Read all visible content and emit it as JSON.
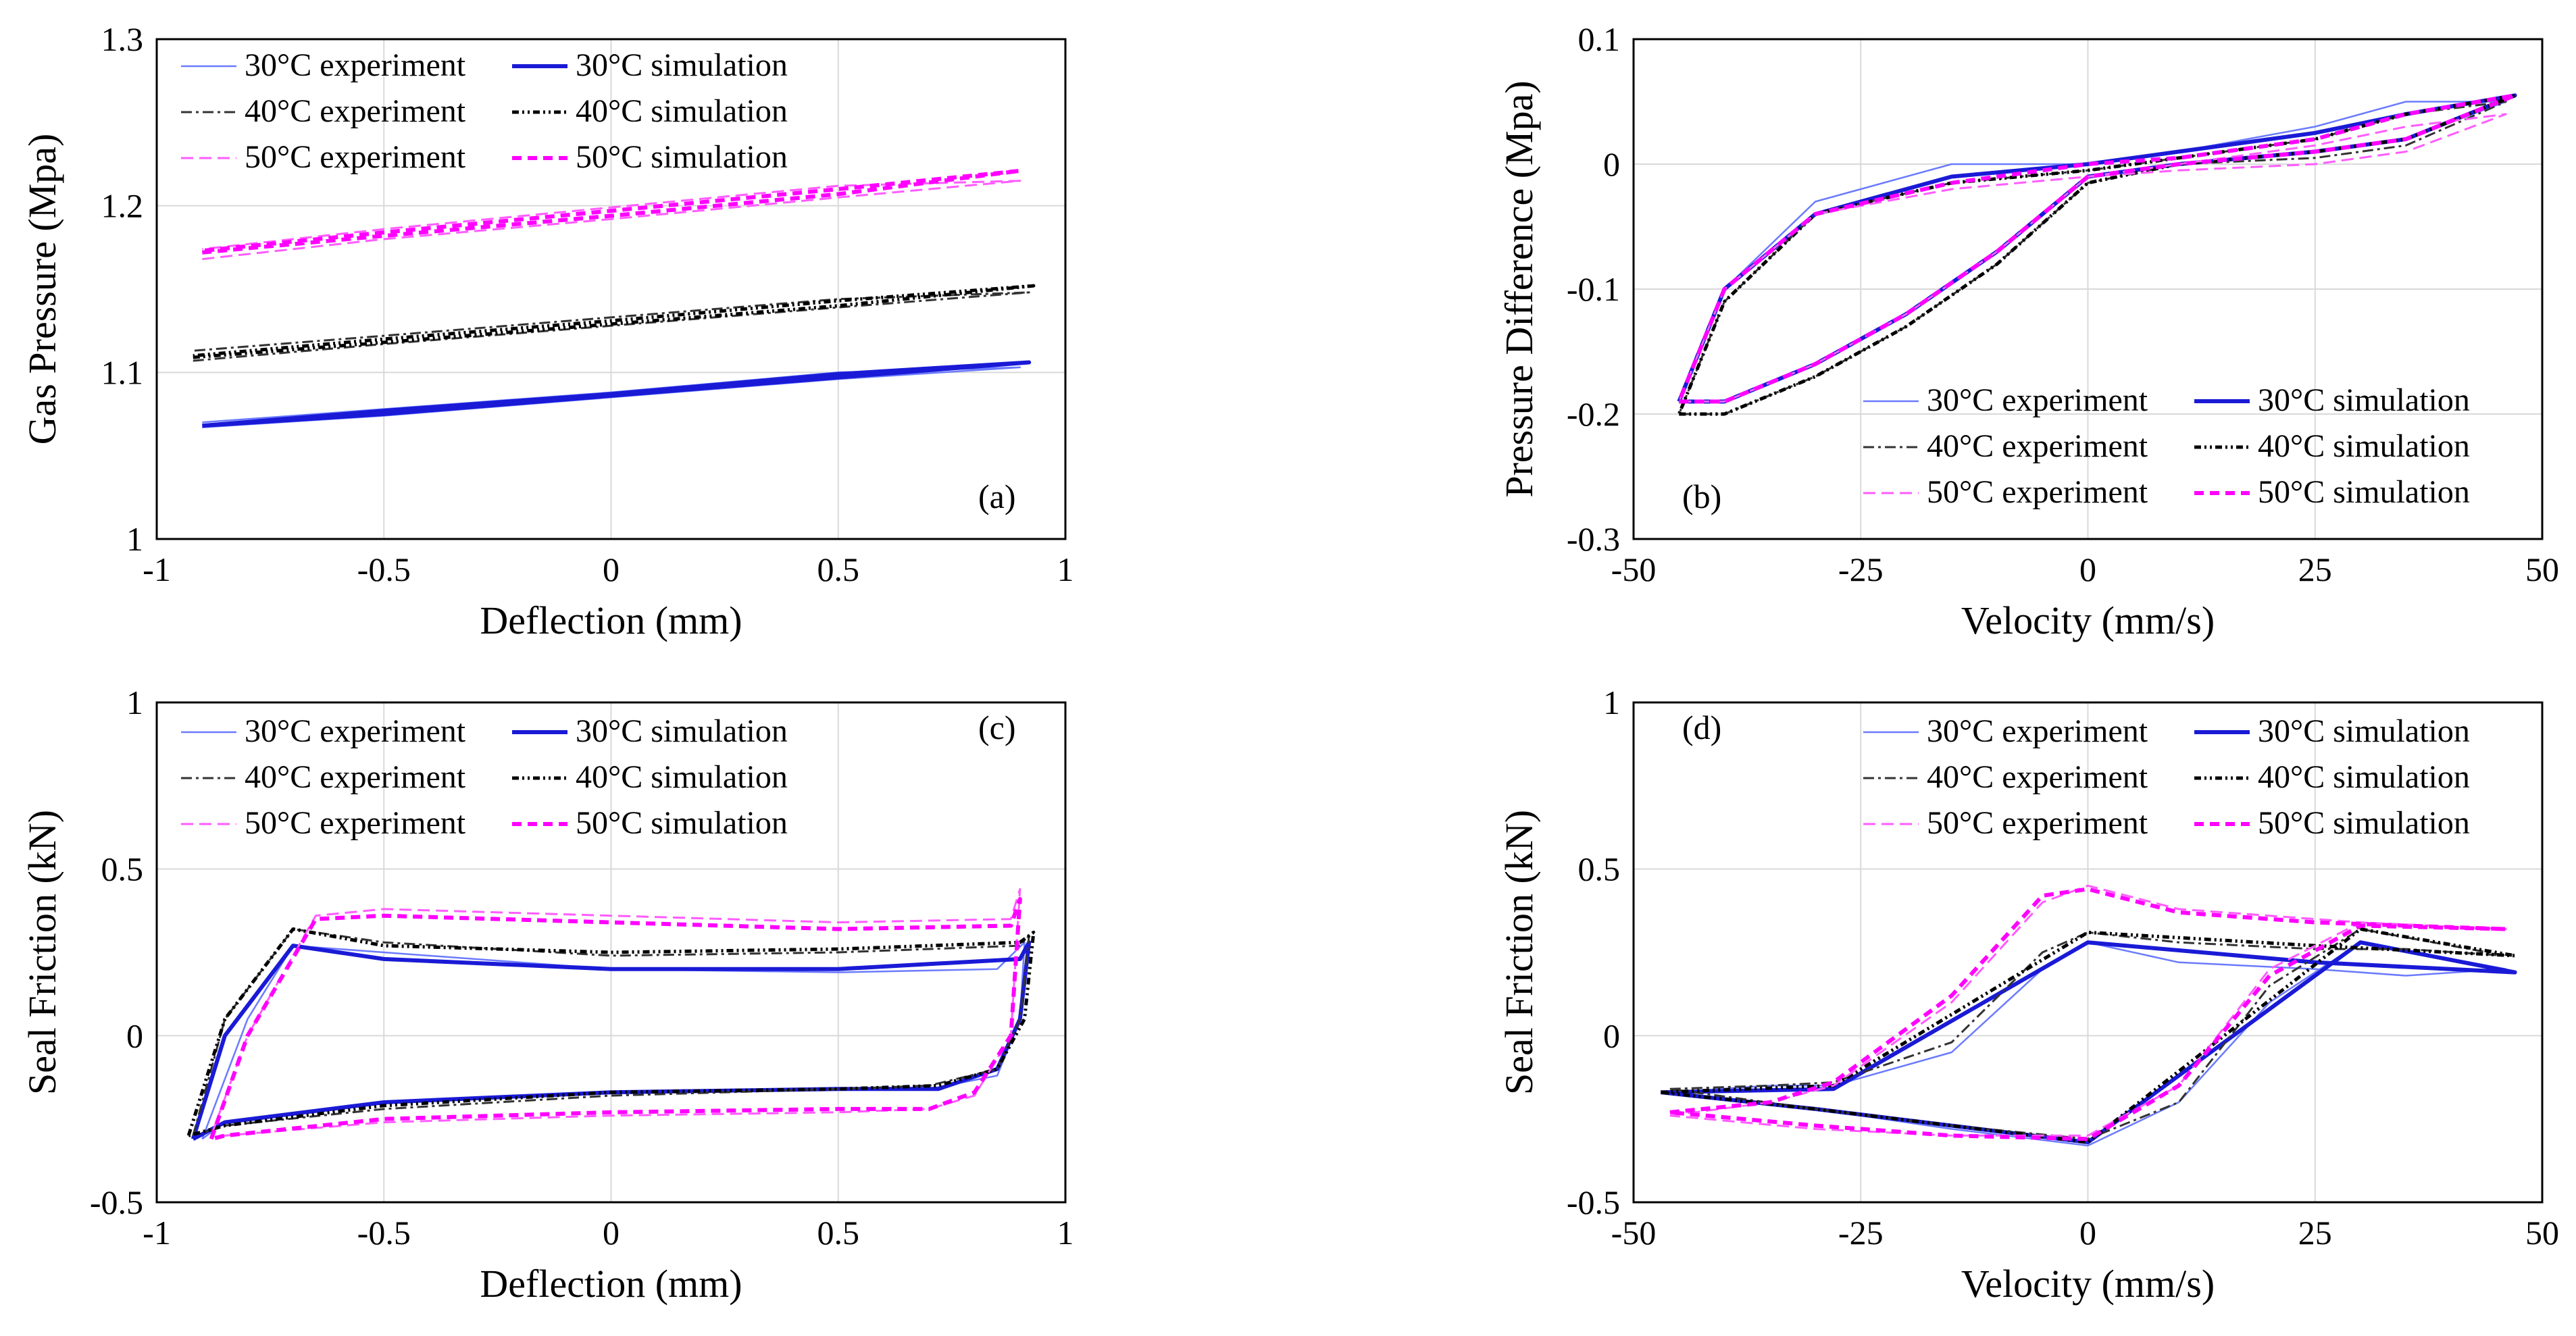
{
  "colors": {
    "exp30": "#6b7bff",
    "sim30": "#1a1ad6",
    "exp40": "#333333",
    "sim40": "#000000",
    "exp50": "#ff5cff",
    "sim50": "#ff00ff",
    "grid": "#d9d9d9"
  },
  "chart_data": [
    {
      "id": "a",
      "type": "line",
      "panel_label": "(a)",
      "xlabel": "Deflection (mm)",
      "ylabel": "Gas Pressure (Mpa)",
      "xlim": [
        -1,
        1
      ],
      "ylim": [
        1,
        1.3
      ],
      "xticks": [
        -1,
        -0.5,
        0,
        0.5,
        1
      ],
      "xtick_labels": [
        "-1",
        "-0.5",
        "0",
        "0.5",
        "1"
      ],
      "yticks": [
        1,
        1.1,
        1.2,
        1.3
      ],
      "ytick_labels": [
        "1",
        "1.1",
        "1.2",
        "1.3"
      ],
      "grid": true,
      "legend_position": "top-left",
      "series": [
        {
          "name": "30°C experiment",
          "key": "exp30",
          "x": [
            -0.9,
            -0.5,
            0,
            0.5,
            0.9,
            0.5,
            0,
            -0.5,
            -0.9
          ],
          "y": [
            1.067,
            1.074,
            1.085,
            1.096,
            1.103,
            1.1,
            1.088,
            1.078,
            1.07
          ]
        },
        {
          "name": "30°C simulation",
          "key": "sim30",
          "x": [
            -0.9,
            -0.5,
            0,
            0.5,
            0.92,
            0.5,
            0,
            -0.5,
            -0.9
          ],
          "y": [
            1.068,
            1.075,
            1.086,
            1.097,
            1.106,
            1.099,
            1.087,
            1.077,
            1.068
          ]
        },
        {
          "name": "40°C experiment",
          "key": "exp40",
          "x": [
            -0.92,
            -0.5,
            0,
            0.5,
            0.92,
            0.5,
            0,
            -0.5,
            -0.92
          ],
          "y": [
            1.107,
            1.117,
            1.128,
            1.139,
            1.148,
            1.144,
            1.133,
            1.122,
            1.113
          ]
        },
        {
          "name": "40°C simulation",
          "key": "sim40",
          "x": [
            -0.92,
            -0.5,
            0,
            0.5,
            0.93,
            0.5,
            0,
            -0.5,
            -0.92
          ],
          "y": [
            1.109,
            1.118,
            1.129,
            1.14,
            1.152,
            1.143,
            1.131,
            1.12,
            1.11
          ]
        },
        {
          "name": "50°C experiment",
          "key": "exp50",
          "x": [
            -0.9,
            -0.5,
            0,
            0.5,
            0.9,
            0.5,
            0,
            -0.5,
            -0.9
          ],
          "y": [
            1.168,
            1.18,
            1.192,
            1.205,
            1.215,
            1.212,
            1.199,
            1.186,
            1.174
          ]
        },
        {
          "name": "50°C simulation",
          "key": "sim50",
          "x": [
            -0.9,
            -0.5,
            0,
            0.5,
            0.9,
            0.5,
            0,
            -0.5,
            -0.9
          ],
          "y": [
            1.172,
            1.182,
            1.194,
            1.207,
            1.221,
            1.21,
            1.197,
            1.184,
            1.173
          ]
        }
      ]
    },
    {
      "id": "b",
      "type": "line",
      "panel_label": "(b)",
      "xlabel": "Velocity (mm/s)",
      "ylabel": "Pressure Difference (Mpa)",
      "xlim": [
        -50,
        50
      ],
      "ylim": [
        -0.3,
        0.1
      ],
      "xticks": [
        -50,
        -25,
        0,
        25,
        50
      ],
      "xtick_labels": [
        "-50",
        "-25",
        "0",
        "25",
        "50"
      ],
      "yticks": [
        -0.3,
        -0.2,
        -0.1,
        0,
        0.1
      ],
      "ytick_labels": [
        "-0.3",
        "-0.2",
        "-0.1",
        "0",
        "0.1"
      ],
      "grid": true,
      "legend_position": "bottom-right",
      "series": [
        {
          "name": "30°C experiment",
          "key": "exp30",
          "x": [
            -45,
            -40,
            -30,
            -20,
            -10,
            0,
            10,
            25,
            35,
            46,
            35,
            25,
            10,
            0,
            -15,
            -30,
            -40,
            -45
          ],
          "y": [
            -0.19,
            -0.19,
            -0.16,
            -0.12,
            -0.07,
            -0.01,
            0.0,
            0.01,
            0.02,
            0.05,
            0.05,
            0.03,
            0.01,
            0.0,
            0.0,
            -0.03,
            -0.1,
            -0.19
          ]
        },
        {
          "name": "30°C simulation",
          "key": "sim30",
          "x": [
            -45,
            -40,
            -30,
            -20,
            -10,
            0,
            10,
            25,
            35,
            47,
            35,
            25,
            10,
            0,
            -15,
            -30,
            -40,
            -45
          ],
          "y": [
            -0.19,
            -0.19,
            -0.16,
            -0.12,
            -0.07,
            -0.01,
            0.0,
            0.01,
            0.02,
            0.055,
            0.04,
            0.025,
            0.01,
            0.0,
            -0.01,
            -0.04,
            -0.1,
            -0.19
          ]
        },
        {
          "name": "40°C experiment",
          "key": "exp40",
          "x": [
            -45,
            -40,
            -30,
            -20,
            -10,
            0,
            10,
            25,
            35,
            46,
            35,
            25,
            10,
            0,
            -15,
            -30,
            -40,
            -45
          ],
          "y": [
            -0.2,
            -0.2,
            -0.17,
            -0.13,
            -0.08,
            -0.015,
            0.0,
            0.005,
            0.015,
            0.05,
            0.04,
            0.02,
            0.005,
            -0.005,
            -0.015,
            -0.04,
            -0.11,
            -0.2
          ]
        },
        {
          "name": "40°C simulation",
          "key": "sim40",
          "x": [
            -45,
            -40,
            -30,
            -20,
            -10,
            0,
            10,
            25,
            35,
            47,
            35,
            25,
            10,
            0,
            -15,
            -30,
            -40,
            -45
          ],
          "y": [
            -0.2,
            -0.2,
            -0.17,
            -0.13,
            -0.08,
            -0.015,
            0.0,
            0.01,
            0.02,
            0.055,
            0.04,
            0.02,
            0.005,
            -0.005,
            -0.015,
            -0.04,
            -0.11,
            -0.2
          ]
        },
        {
          "name": "50°C experiment",
          "key": "exp50",
          "x": [
            -45,
            -40,
            -30,
            -20,
            -10,
            0,
            10,
            25,
            35,
            46,
            35,
            25,
            10,
            0,
            -15,
            -30,
            -40,
            -45
          ],
          "y": [
            -0.19,
            -0.19,
            -0.16,
            -0.12,
            -0.07,
            -0.01,
            -0.005,
            0.0,
            0.01,
            0.04,
            0.03,
            0.015,
            0.0,
            -0.01,
            -0.02,
            -0.04,
            -0.1,
            -0.19
          ]
        },
        {
          "name": "50°C simulation",
          "key": "sim50",
          "x": [
            -45,
            -40,
            -30,
            -20,
            -10,
            0,
            10,
            25,
            35,
            47,
            35,
            25,
            10,
            0,
            -15,
            -30,
            -40,
            -45
          ],
          "y": [
            -0.19,
            -0.19,
            -0.16,
            -0.12,
            -0.07,
            -0.01,
            0.0,
            0.01,
            0.02,
            0.055,
            0.04,
            0.02,
            0.005,
            0.0,
            -0.015,
            -0.04,
            -0.1,
            -0.19
          ]
        }
      ]
    },
    {
      "id": "c",
      "type": "line",
      "panel_label": "(c)",
      "xlabel": "Deflection (mm)",
      "ylabel": "Seal Friction (kN)",
      "xlim": [
        -1,
        1
      ],
      "ylim": [
        -0.5,
        1
      ],
      "xticks": [
        -1,
        -0.5,
        0,
        0.5,
        1
      ],
      "xtick_labels": [
        "-1",
        "-0.5",
        "0",
        "0.5",
        "1"
      ],
      "yticks": [
        -0.5,
        0,
        0.5,
        1
      ],
      "ytick_labels": [
        "-0.5",
        "0",
        "0.5",
        "1"
      ],
      "grid": true,
      "legend_position": "top",
      "series": [
        {
          "name": "30°C experiment",
          "key": "exp30",
          "x": [
            -0.9,
            -0.8,
            -0.7,
            -0.5,
            0,
            0.5,
            0.85,
            0.91,
            0.9,
            0.85,
            0.7,
            0.5,
            0,
            -0.5,
            -0.85,
            -0.9
          ],
          "y": [
            -0.31,
            0.05,
            0.27,
            0.25,
            0.2,
            0.19,
            0.2,
            0.28,
            0.05,
            -0.12,
            -0.16,
            -0.16,
            -0.17,
            -0.2,
            -0.26,
            -0.31
          ]
        },
        {
          "name": "30°C simulation",
          "key": "sim30",
          "x": [
            -0.92,
            -0.85,
            -0.7,
            -0.5,
            0,
            0.5,
            0.9,
            0.92,
            0.9,
            0.85,
            0.72,
            0.5,
            0,
            -0.5,
            -0.85,
            -0.92
          ],
          "y": [
            -0.31,
            0.0,
            0.27,
            0.23,
            0.2,
            0.2,
            0.23,
            0.28,
            0.05,
            -0.1,
            -0.16,
            -0.16,
            -0.17,
            -0.2,
            -0.26,
            -0.31
          ]
        },
        {
          "name": "40°C experiment",
          "key": "exp40",
          "x": [
            -0.92,
            -0.85,
            -0.7,
            -0.5,
            0,
            0.5,
            0.9,
            0.92,
            0.9,
            0.85,
            0.7,
            0.5,
            0,
            -0.5,
            -0.85,
            -0.92
          ],
          "y": [
            -0.3,
            0.05,
            0.32,
            0.28,
            0.24,
            0.25,
            0.27,
            0.3,
            0.05,
            -0.1,
            -0.15,
            -0.16,
            -0.18,
            -0.22,
            -0.27,
            -0.3
          ]
        },
        {
          "name": "40°C simulation",
          "key": "sim40",
          "x": [
            -0.93,
            -0.85,
            -0.7,
            -0.5,
            0,
            0.5,
            0.9,
            0.93,
            0.91,
            0.85,
            0.72,
            0.5,
            0,
            -0.5,
            -0.85,
            -0.93
          ],
          "y": [
            -0.3,
            0.05,
            0.32,
            0.27,
            0.25,
            0.26,
            0.28,
            0.31,
            0.05,
            -0.1,
            -0.15,
            -0.16,
            -0.17,
            -0.21,
            -0.27,
            -0.3
          ]
        },
        {
          "name": "50°C experiment",
          "key": "exp50",
          "x": [
            -0.88,
            -0.8,
            -0.65,
            -0.5,
            0,
            0.5,
            0.88,
            0.9,
            0.88,
            0.8,
            0.7,
            0.5,
            0,
            -0.5,
            -0.85,
            -0.88
          ],
          "y": [
            -0.3,
            0.0,
            0.36,
            0.38,
            0.36,
            0.34,
            0.35,
            0.44,
            0.0,
            -0.18,
            -0.22,
            -0.23,
            -0.24,
            -0.26,
            -0.3,
            -0.3
          ]
        },
        {
          "name": "50°C simulation",
          "key": "sim50",
          "x": [
            -0.88,
            -0.8,
            -0.65,
            -0.5,
            0,
            0.5,
            0.88,
            0.9,
            0.88,
            0.8,
            0.7,
            0.5,
            0,
            -0.5,
            -0.85,
            -0.88
          ],
          "y": [
            -0.31,
            0.0,
            0.35,
            0.36,
            0.34,
            0.32,
            0.33,
            0.41,
            0.0,
            -0.17,
            -0.22,
            -0.22,
            -0.23,
            -0.25,
            -0.3,
            -0.31
          ]
        }
      ]
    },
    {
      "id": "d",
      "type": "line",
      "panel_label": "(d)",
      "xlabel": "Velocity (mm/s)",
      "ylabel": "Seal Friction (kN)",
      "xlim": [
        -50,
        50
      ],
      "ylim": [
        -0.5,
        1
      ],
      "xticks": [
        -50,
        -25,
        0,
        25,
        50
      ],
      "xtick_labels": [
        "-50",
        "-25",
        "0",
        "25",
        "50"
      ],
      "yticks": [
        -0.5,
        0,
        0.5,
        1
      ],
      "ytick_labels": [
        "-0.5",
        "0",
        "0.5",
        "1"
      ],
      "grid": true,
      "legend_position": "top",
      "series": [
        {
          "name": "30°C experiment",
          "key": "exp30",
          "x": [
            -46,
            -35,
            -28,
            -15,
            -5,
            0,
            10,
            25,
            35,
            46,
            30,
            20,
            10,
            0,
            -15,
            -30,
            -46
          ],
          "y": [
            -0.17,
            -0.15,
            -0.15,
            -0.05,
            0.2,
            0.28,
            0.22,
            0.2,
            0.18,
            0.2,
            0.28,
            0.1,
            -0.2,
            -0.33,
            -0.28,
            -0.22,
            -0.17
          ]
        },
        {
          "name": "30°C simulation",
          "key": "sim30",
          "x": [
            -47,
            -28,
            0,
            25,
            47,
            30,
            0,
            -30,
            -47
          ],
          "y": [
            -0.17,
            -0.16,
            0.28,
            0.22,
            0.19,
            0.28,
            -0.32,
            -0.22,
            -0.17
          ]
        },
        {
          "name": "40°C experiment",
          "key": "exp40",
          "x": [
            -46,
            -35,
            -28,
            -15,
            -5,
            0,
            10,
            25,
            35,
            46,
            30,
            20,
            10,
            0,
            -15,
            -30,
            -46
          ],
          "y": [
            -0.16,
            -0.15,
            -0.14,
            -0.02,
            0.25,
            0.31,
            0.28,
            0.26,
            0.26,
            0.24,
            0.32,
            0.15,
            -0.2,
            -0.31,
            -0.27,
            -0.22,
            -0.16
          ]
        },
        {
          "name": "40°C simulation",
          "key": "sim40",
          "x": [
            -47,
            -28,
            0,
            25,
            47,
            30,
            0,
            -30,
            -47
          ],
          "y": [
            -0.17,
            -0.15,
            0.31,
            0.27,
            0.24,
            0.32,
            -0.32,
            -0.22,
            -0.17
          ]
        },
        {
          "name": "50°C experiment",
          "key": "exp50",
          "x": [
            -46,
            -35,
            -28,
            -15,
            -5,
            0,
            10,
            25,
            35,
            46,
            30,
            20,
            10,
            0,
            -15,
            -30,
            -46
          ],
          "y": [
            -0.24,
            -0.2,
            -0.15,
            0.1,
            0.4,
            0.45,
            0.38,
            0.35,
            0.33,
            0.32,
            0.34,
            0.2,
            -0.15,
            -0.3,
            -0.3,
            -0.28,
            -0.24
          ]
        },
        {
          "name": "50°C simulation",
          "key": "sim50",
          "x": [
            -46,
            -35,
            -28,
            -15,
            -5,
            0,
            10,
            25,
            35,
            46,
            30,
            20,
            10,
            0,
            -15,
            -30,
            -46
          ],
          "y": [
            -0.23,
            -0.2,
            -0.14,
            0.12,
            0.42,
            0.44,
            0.37,
            0.34,
            0.33,
            0.32,
            0.33,
            0.18,
            -0.15,
            -0.31,
            -0.3,
            -0.27,
            -0.23
          ]
        }
      ]
    }
  ]
}
